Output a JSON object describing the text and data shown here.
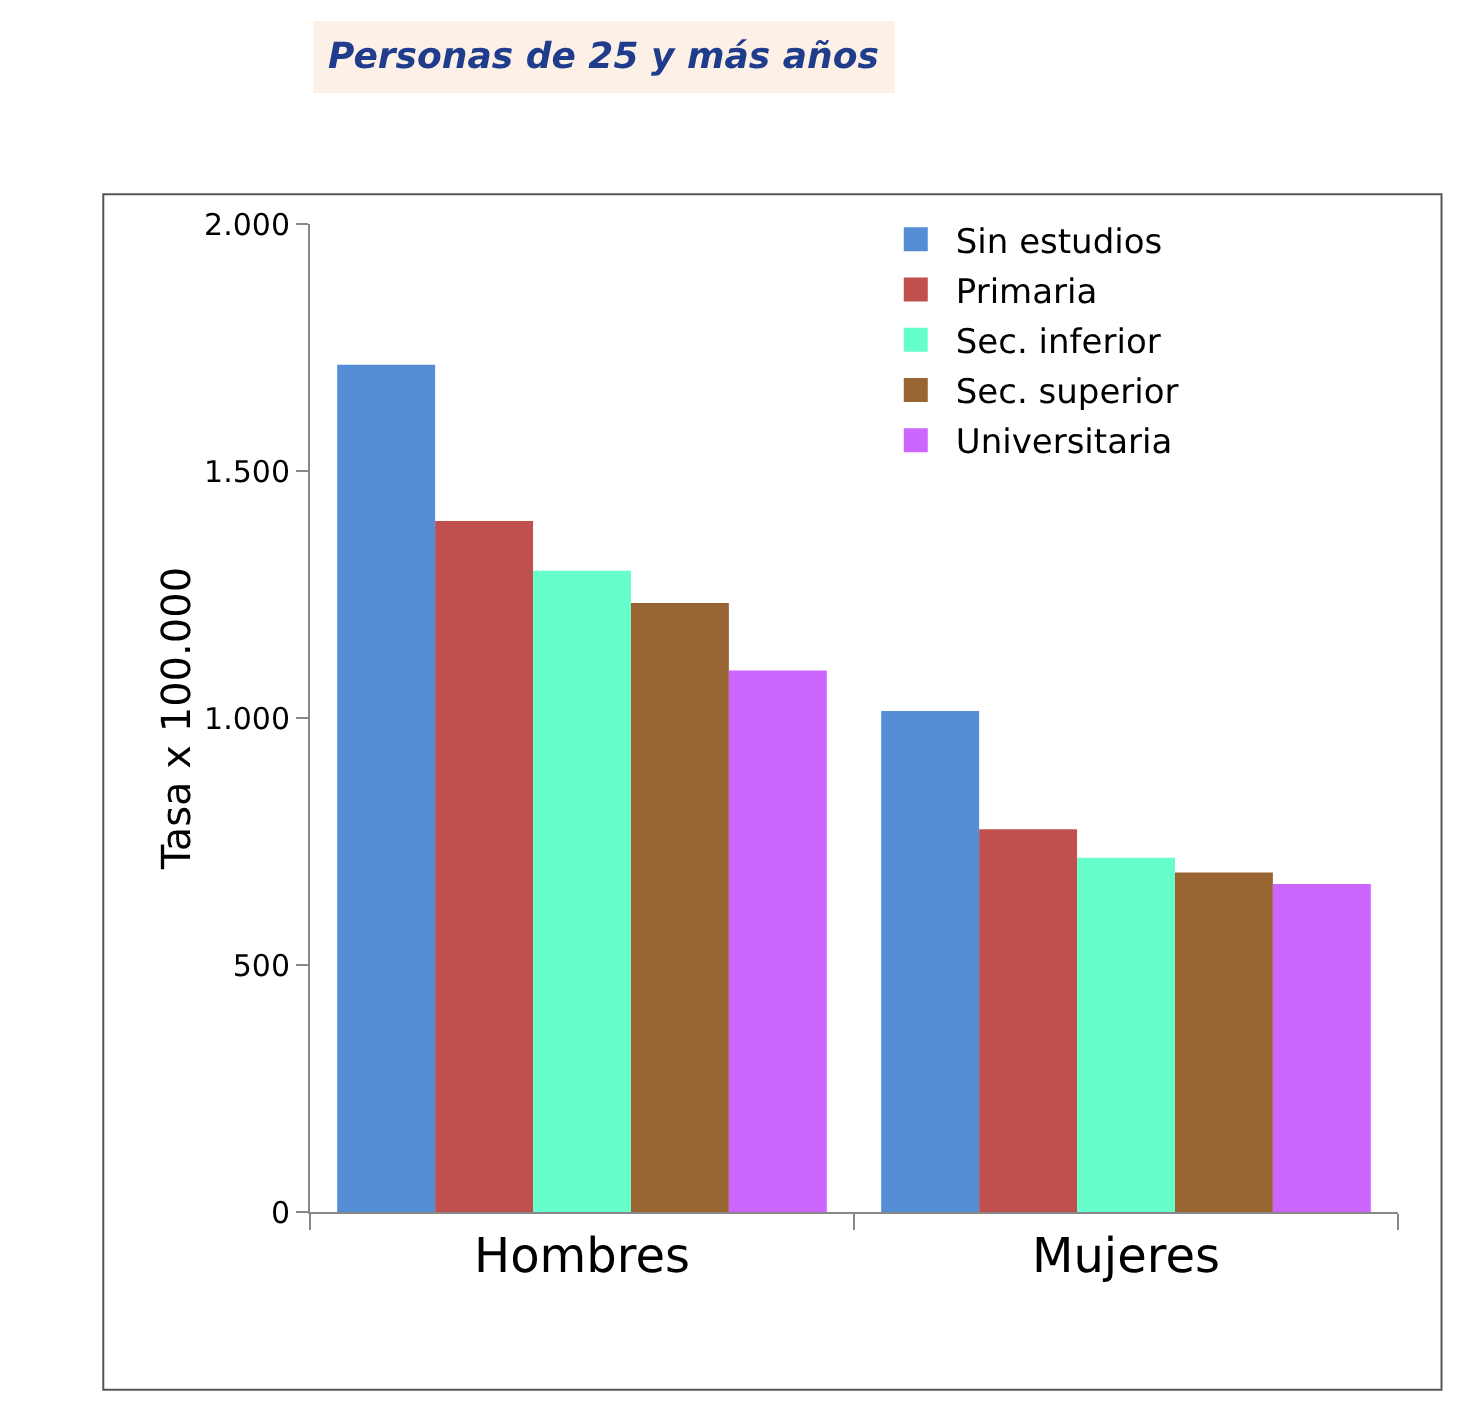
{
  "chart_data": {
    "type": "bar",
    "title": "Personas de 25 y más años",
    "ylabel": "Tasa x 100.000",
    "categories": [
      "Hombres",
      "Mujeres"
    ],
    "series": [
      {
        "name": "Sin estudios",
        "color": "#558ed5",
        "values": [
          1715,
          1014
        ]
      },
      {
        "name": "Primaria",
        "color": "#c0504d",
        "values": [
          1399,
          775
        ]
      },
      {
        "name": "Sec. inferior",
        "color": "#66ffcc",
        "values": [
          1298,
          717
        ]
      },
      {
        "name": "Sec. superior",
        "color": "#996633",
        "values": [
          1233,
          687
        ]
      },
      {
        "name": "Universitaria",
        "color": "#cc66ff",
        "values": [
          1096,
          664
        ]
      }
    ],
    "ylim": [
      0,
      2000
    ],
    "yticks": [
      {
        "value": 0,
        "label": "0"
      },
      {
        "value": 500,
        "label": "500"
      },
      {
        "value": 1000,
        "label": "1.000"
      },
      {
        "value": 1500,
        "label": "1.500"
      },
      {
        "value": 2000,
        "label": "2.000"
      }
    ],
    "grid": false,
    "legend": "top right"
  }
}
